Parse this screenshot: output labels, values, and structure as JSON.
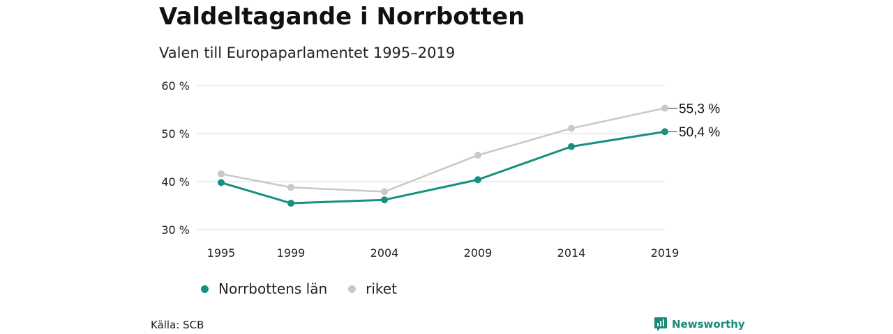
{
  "title": "Valdeltagande i Norrbotten",
  "subtitle": "Valen till Europaparlamentet 1995–2019",
  "source": "Källa: SCB",
  "brand": "Newsworthy",
  "colors": {
    "region": "#17907f",
    "national": "#c8c8c8",
    "grid": "#dddddd",
    "brand": "#1a8a7c"
  },
  "chart_data": {
    "type": "line",
    "x": [
      "1995",
      "1999",
      "2004",
      "2009",
      "2014",
      "2019"
    ],
    "ylim": [
      30,
      60
    ],
    "yticks": [
      30,
      40,
      50,
      60
    ],
    "ytick_labels": [
      "30 %",
      "40 %",
      "50 %",
      "60 %"
    ],
    "grid": true,
    "legend_position": "bottom",
    "series": [
      {
        "name": "Norrbottens län",
        "color": "#17907f",
        "values": [
          39.8,
          35.5,
          36.2,
          40.4,
          47.3,
          50.4
        ],
        "end_label": "50,4 %"
      },
      {
        "name": "riket",
        "color": "#c8c8c8",
        "values": [
          41.6,
          38.8,
          37.9,
          45.5,
          51.1,
          55.3
        ],
        "end_label": "55,3 %"
      }
    ]
  }
}
